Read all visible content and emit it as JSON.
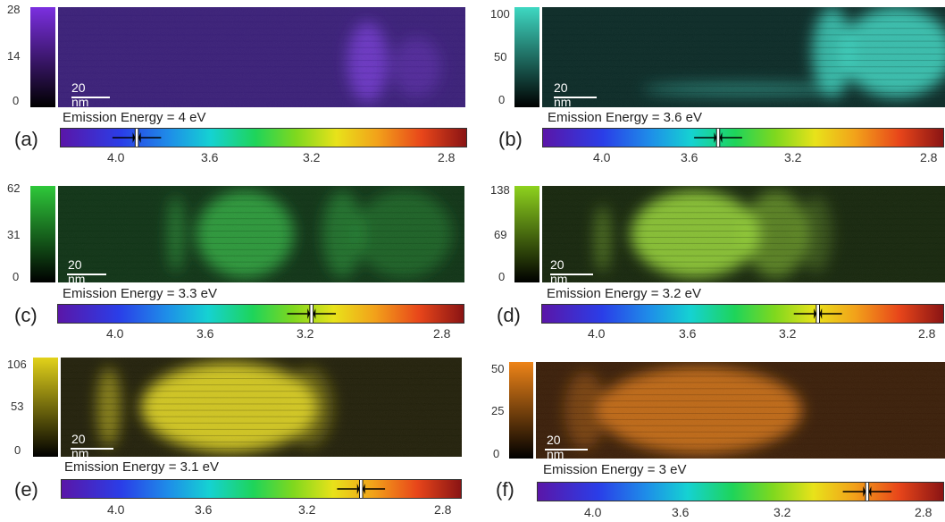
{
  "panels": [
    {
      "id": "a",
      "label": "(a)",
      "emission": "Emission Energy = 4 eV",
      "energy_ev": 4.0,
      "scale_ticks": [
        "28",
        "14",
        "0"
      ],
      "scalebar": "20 nm",
      "colors": {
        "map": "#3a1f78",
        "glow": "#7a3fd8",
        "bar_top": "#7b2fe0",
        "bar_bottom": "#000000"
      },
      "spectrum_ticks": [
        "4.0",
        "3.6",
        "3.2",
        "2.8"
      ]
    },
    {
      "id": "b",
      "label": "(b)",
      "emission": "Emission Energy = 3.6 eV",
      "energy_ev": 3.6,
      "scale_ticks": [
        "100",
        "50",
        "0"
      ],
      "scalebar": "20 nm",
      "colors": {
        "map": "#0b2a26",
        "glow": "#3fd6c2",
        "bar_top": "#3ed8c2",
        "bar_bottom": "#000000"
      },
      "spectrum_ticks": [
        "4.0",
        "3.6",
        "3.2",
        "2.8"
      ]
    },
    {
      "id": "c",
      "label": "(c)",
      "emission": "Emission Energy = 3.3 eV",
      "energy_ev": 3.3,
      "scale_ticks": [
        "62",
        "31",
        "0"
      ],
      "scalebar": "20 nm",
      "colors": {
        "map": "#0f3315",
        "glow": "#35b845",
        "bar_top": "#2ec83a",
        "bar_bottom": "#000000"
      },
      "spectrum_ticks": [
        "4.0",
        "3.6",
        "3.2",
        "2.8"
      ]
    },
    {
      "id": "d",
      "label": "(d)",
      "emission": "Emission Energy = 3.2 eV",
      "energy_ev": 3.2,
      "scale_ticks": [
        "138",
        "69",
        "0"
      ],
      "scalebar": "20 nm",
      "colors": {
        "map": "#16260c",
        "glow": "#9ad83a",
        "bar_top": "#8ed21e",
        "bar_bottom": "#000000"
      },
      "spectrum_ticks": [
        "4.0",
        "3.6",
        "3.2",
        "2.8"
      ]
    },
    {
      "id": "e",
      "label": "(e)",
      "emission": "Emission Energy = 3.1 eV",
      "energy_ev": 3.1,
      "scale_ticks": [
        "106",
        "53",
        "0"
      ],
      "scalebar": "20 nm",
      "colors": {
        "map": "#22200a",
        "glow": "#d8cc22",
        "bar_top": "#e2d21a",
        "bar_bottom": "#000000"
      },
      "spectrum_ticks": [
        "4.0",
        "3.6",
        "3.2",
        "2.8"
      ]
    },
    {
      "id": "f",
      "label": "(f)",
      "emission": "Emission Energy = 3 eV",
      "energy_ev": 3.0,
      "scale_ticks": [
        "50",
        "25",
        "0"
      ],
      "scalebar": "20 nm",
      "colors": {
        "map": "#3a1e08",
        "glow": "#e8821e",
        "bar_top": "#ee8418",
        "bar_bottom": "#000000"
      },
      "spectrum_ticks": [
        "4.0",
        "3.6",
        "3.2",
        "2.8"
      ]
    }
  ]
}
